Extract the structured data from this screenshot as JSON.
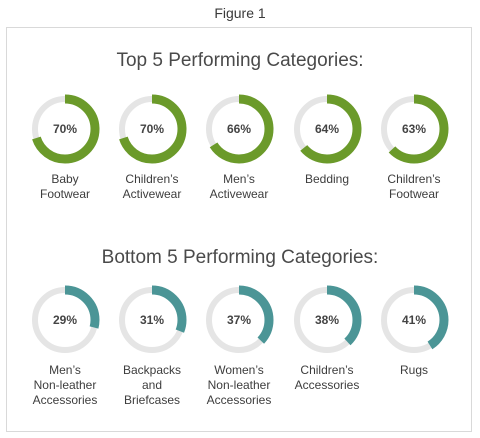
{
  "figure_caption": "Figure 1",
  "chart_data": [
    {
      "type": "donut",
      "title": "Top 5 Performing Categories:",
      "color": "#6b9a2a",
      "track_color": "#e5e5e5",
      "items": [
        {
          "label": "Baby Footwear",
          "label_lines": [
            "Baby",
            "Footwear"
          ],
          "value": 70,
          "display": "70%"
        },
        {
          "label": "Children's Activewear",
          "label_lines": [
            "Children’s",
            "Activewear"
          ],
          "value": 70,
          "display": "70%"
        },
        {
          "label": "Men's Activewear",
          "label_lines": [
            "Men’s",
            "Activewear"
          ],
          "value": 66,
          "display": "66%"
        },
        {
          "label": "Bedding",
          "label_lines": [
            "Bedding"
          ],
          "value": 64,
          "display": "64%"
        },
        {
          "label": "Children's Footwear",
          "label_lines": [
            "Children’s",
            "Footwear"
          ],
          "value": 63,
          "display": "63%"
        }
      ]
    },
    {
      "type": "donut",
      "title": "Bottom 5 Performing Categories:",
      "color": "#4b9596",
      "track_color": "#e5e5e5",
      "items": [
        {
          "label": "Men's Non-leather Accessories",
          "label_lines": [
            "Men’s",
            "Non-leather",
            "Accessories"
          ],
          "value": 29,
          "display": "29%"
        },
        {
          "label": "Backpacks and Briefcases",
          "label_lines": [
            "Backpacks",
            "and",
            "Briefcases"
          ],
          "value": 31,
          "display": "31%"
        },
        {
          "label": "Women's Non-leather Accessories",
          "label_lines": [
            "Women’s",
            "Non-leather",
            "Accessories"
          ],
          "value": 37,
          "display": "37%"
        },
        {
          "label": "Children's Accessories",
          "label_lines": [
            "Children’s",
            "Accessories"
          ],
          "value": 38,
          "display": "38%"
        },
        {
          "label": "Rugs",
          "label_lines": [
            "Rugs"
          ],
          "value": 41,
          "display": "41%"
        }
      ]
    }
  ]
}
